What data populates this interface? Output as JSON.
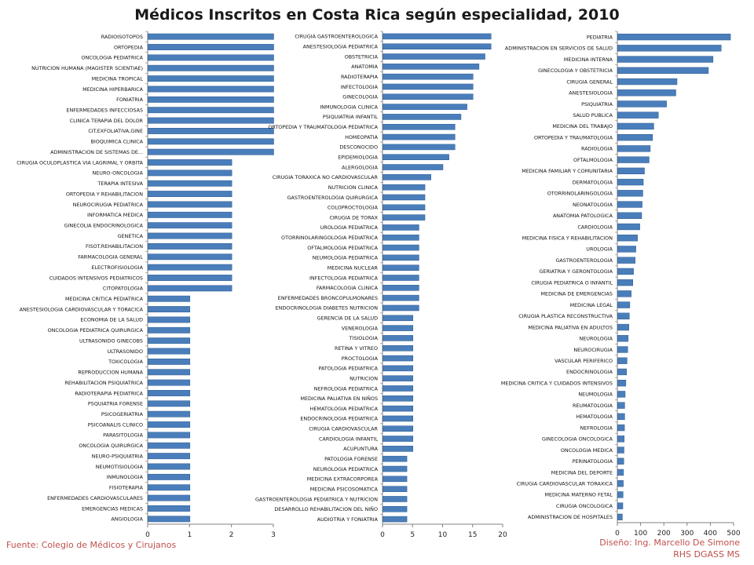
{
  "title": "Médicos Inscritos en Costa Rica según especialidad, 2010",
  "footer": {
    "source": "Fuente:   Colegio de Médicos y Cirujanos",
    "design_line1": "Diseño: Ing. Marcello De Simone",
    "design_line2": "RHS DGASS MS"
  },
  "colors": {
    "bar": "#4a7ebb",
    "bar_edge": "#2d5a8f",
    "axis": "#808080",
    "footer": "#c0504d"
  },
  "chart_data": [
    {
      "type": "bar",
      "orientation": "horizontal",
      "xlim": [
        0,
        3
      ],
      "xticks": [
        0,
        1,
        2,
        3
      ],
      "categories": [
        "RADIOISOTOPOS",
        "ORTOPEDIA",
        "ONCOLOGIA PEDIATRICA",
        "NUTRICION HUMANA (MAGISTER SCIENTIAE)",
        "MEDICINA TROPICAL",
        "MEDICINA HIPERBARICA",
        "FONIATRIA",
        "ENFERMEDADES INFECCIOSAS",
        "CLINICA TERAPIA DEL DOLOR",
        "CIT.EXFOLIATIVA,GINE",
        "BIOQUIMICA CLINICA",
        "ADMINISTRACION DE SISTEMAS DE...",
        "CIRUGIA OCULOPLASTICA VIA LAGRIMAL Y ORBITA",
        "NEURO-ONCOLOGIA",
        "TERAPIA INTESIVA",
        "ORTOPEDIA Y REHABILITACION",
        "NEUROCIRUGIA PEDIATRICA",
        "INFORMATICA MEDICA",
        "GINECOLIA ENDOCRINOLOGICA",
        "GENETICA",
        "FISOT.REHABILITACION",
        "FARMACOLOGIA GENERAL",
        "ELECTROFISIOLOGIA",
        "CUIDADOS INTENSIVOS PEDIATRICOS",
        "CITOPATOLOGIA",
        "MEDICINA CRITICA PEDIATRICA",
        "ANESTESIOLOGIA CARDIOVASCULAR Y TORACICA",
        "ECONOMIA DE LA SALUD",
        "ONCOLOGIA PEDIATRICA QUIRURGICA",
        "ULTRASONIDO GINECOBS",
        "ULTRASONIDO",
        "TOXICOLOGIA",
        "REPRODUCCION HUMANA",
        "REHABILITACION PSIQUIATRICA",
        "RADIOTERAPIA PEDIATRICA",
        "PSQUIATRIA FORENSE",
        "PSICOGERIATRIA",
        "PSICOANALIS CLINICO",
        "PARASITOLOGIA",
        "ONCOLOGIA QUIRURGICA",
        "NEURO-PSIQUIATRIA",
        "NEUMOTISIOLOGIA",
        "INMUNOLOGIA",
        "FISIOTERAPIA",
        "ENFERMEDADES CARDIOVASCULARES",
        "EMERGENCIAS MEDICAS",
        "ANGIOLOGIA"
      ],
      "values": [
        3,
        3,
        3,
        3,
        3,
        3,
        3,
        3,
        3,
        3,
        3,
        3,
        2,
        2,
        2,
        2,
        2,
        2,
        2,
        2,
        2,
        2,
        2,
        2,
        2,
        1,
        1,
        1,
        1,
        1,
        1,
        1,
        1,
        1,
        1,
        1,
        1,
        1,
        1,
        1,
        1,
        1,
        1,
        1,
        1,
        1,
        1
      ]
    },
    {
      "type": "bar",
      "orientation": "horizontal",
      "xlim": [
        0,
        20
      ],
      "xticks": [
        0,
        5,
        10,
        15,
        20
      ],
      "categories": [
        "CIRUGIA GASTROENTEROLOGICA",
        "ANESTESIOLOGIA PEDIATRICA",
        "OBSTETRICIA",
        "ANATOMIA",
        "RADIOTERAPIA",
        "INFECTOLOGIA",
        "GINECOLOGIA",
        "INMUNOLOGIA CLINICA",
        "PSIQUIATRIA INFANTIL",
        "ORTOPEDIA Y TRAUMATOLOGIA PEDIATRICA",
        "HOMEOPATIA",
        "DESCONOCIDO",
        "EPIDEMIOLOGIA",
        "ALERGOLOGIA",
        "CIRUGIA TORAXICA NO CARDIOVASCULAR",
        "NUTRICION CLINICA",
        "GASTROENTEROLOGIA QUIRURGICA",
        "COLOPROCTOLOGIA",
        "CIRUGIA DE TORAX",
        "UROLOGIA PEDIATRICA",
        "OTORRINOLARINGOLOGIA PEDIATRICA",
        "OFTALMOLOGIA PEDIATRICA",
        "NEUMOLOGIA PEDIATRICA",
        "MEDICINA NUCLEAR",
        "INFECTOLOGIA PEDIATRICA",
        "FARMACOLOGIA CLINICA",
        "ENFERMEDADES BRONCOPULMONARES",
        "ENDOCRINOLOGIA DIABETES NUTRICION",
        "GERENCIA DE LA SALUD",
        "VENEROLOGIA",
        "TISIOLOGIA",
        "RETINA Y VITREO",
        "PROCTOLOGIA",
        "PATOLOGIA PEDIATRICA",
        "NUTRICION",
        "NEFROLOGIA PEDIATRICA",
        "MEDICINA PALIATIVA EN NIÑOS",
        "HEMATOLOGIA PEDIATRICA",
        "ENDOCRINOLOGIA PEDIATRICA",
        "CIRUGIA CARDIOVASCULAR",
        "CARDIOLOGIA INFANTIL",
        "ACUPUNTURA",
        "PATOLOGIA FORENSE",
        "NEUROLOGIA PEDIATRICA",
        "MEDICINA EXTRACORPOREA",
        "MEDICINA PSICOSOMATICA",
        "GASTROENTEROLOGIA PEDIATRICA Y NUTRICION",
        "DESARROLLO REHABILITACION DEL NIÑO",
        "AUDIOTRIA Y FONIATRIA"
      ],
      "values": [
        18,
        18,
        17,
        16,
        15,
        15,
        15,
        14,
        13,
        12,
        12,
        12,
        11,
        10,
        8,
        7,
        7,
        7,
        7,
        6,
        6,
        6,
        6,
        6,
        6,
        6,
        6,
        6,
        5,
        5,
        5,
        5,
        5,
        5,
        5,
        5,
        5,
        5,
        5,
        5,
        5,
        5,
        4,
        4,
        4,
        4,
        4,
        4,
        4
      ]
    },
    {
      "type": "bar",
      "orientation": "horizontal",
      "xlim": [
        0,
        500
      ],
      "xticks": [
        0,
        100,
        200,
        300,
        400,
        500
      ],
      "categories": [
        "PEDIATRIA",
        "ADMINISTRACION EN SERVICIOS DE SALUD",
        "MEDICINA INTERNA",
        "GINECOLOGIA Y OBSTETRICIA",
        "CIRUGIA GENERAL",
        "ANESTESIOLOGIA",
        "PSIQUIATRIA",
        "SALUD PUBLICA",
        "MEDICINA DEL TRABAJO",
        "ORTOPEDIA Y TRAUMATOLOGIA",
        "RADIOLOGIA",
        "OFTALMOLOGIA",
        "MEDICINA FAMILIAR Y COMUNITARIA",
        "DERMATOLOGIA",
        "OTORRINOLARINGOLOGIA",
        "NEONATOLOGIA",
        "ANATOMIA PATOLOGICA",
        "CARDIOLOGIA",
        "MEDICINA FISICA Y REHABILITACION",
        "UROLOGIA",
        "GASTROENTEROLOGIA",
        "GERIATRIA Y GERONTOLOGIA",
        "CIRUGIA PEDIATRICA O INFANTIL",
        "MEDICINA DE EMERGENCIAS",
        "MEDICINA LEGAL",
        "CIRUGIA PLASTICA RECONSTRUCTIVA",
        "MEDICINA PALIATIVA EN ADULTOS",
        "NEUROLOGIA",
        "NEUROCIRUGIA",
        "VASCULAR PERIFERICO",
        "ENDOCRINOLOGIA",
        "MEDICINA CRITICA Y CUIDADOS INTENSIVOS",
        "NEUMOLOGIA",
        "REUMATOLOGIA",
        "HEMATOLOGIA",
        "NEFROLOGIA",
        "GINECOLOGIA ONCOLOGICA",
        "ONCOLOGIA MEDICA",
        "PERINATOLOGIA",
        "MEDICINA DEL DEPORTE",
        "CIRUGIA CARDIOVASCULAR TORAXICA",
        "MEDICINA MATERNO FETAL",
        "CIRUGIA ONCOLOGICA",
        "ADMINISTRACION DE HOSPITALES"
      ],
      "values": [
        485,
        445,
        410,
        390,
        255,
        250,
        210,
        175,
        155,
        150,
        140,
        135,
        115,
        110,
        108,
        105,
        103,
        95,
        85,
        78,
        75,
        68,
        65,
        58,
        52,
        50,
        48,
        45,
        43,
        40,
        38,
        35,
        32,
        30,
        30,
        29,
        28,
        27,
        26,
        25,
        24,
        23,
        22,
        20
      ]
    }
  ]
}
